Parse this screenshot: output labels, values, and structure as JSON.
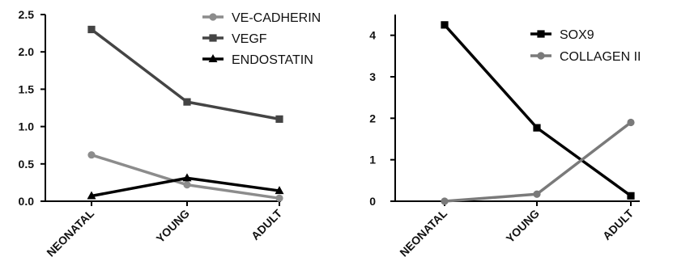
{
  "chart_data": [
    {
      "type": "line",
      "categories": [
        "NEONATAL",
        "YOUNG",
        "ADULT"
      ],
      "ylim": [
        0,
        2.5
      ],
      "yticks": [
        "0.0",
        "0.5",
        "1.0",
        "1.5",
        "2.0",
        "2.5"
      ],
      "legend_position": "top-right",
      "series": [
        {
          "name": "VE-CADHERIN",
          "values": [
            0.62,
            0.22,
            0.04
          ],
          "color": "#8c8c8c",
          "marker": "circle"
        },
        {
          "name": "VEGF",
          "values": [
            2.3,
            1.33,
            1.1
          ],
          "color": "#444444",
          "marker": "square"
        },
        {
          "name": "ENDOSTATIN",
          "values": [
            0.07,
            0.31,
            0.14
          ],
          "color": "#000000",
          "marker": "triangle"
        }
      ]
    },
    {
      "type": "line",
      "categories": [
        "NEONATAL",
        "YOUNG",
        "ADULT"
      ],
      "ylim": [
        0,
        4.5
      ],
      "yticks": [
        "0",
        "1",
        "2",
        "3",
        "4"
      ],
      "legend_position": "top-right",
      "series": [
        {
          "name": "SOX9",
          "values": [
            4.25,
            1.77,
            0.13
          ],
          "color": "#000000",
          "marker": "square"
        },
        {
          "name": "COLLAGEN II",
          "values": [
            0.0,
            0.17,
            1.9
          ],
          "color": "#7a7a7a",
          "marker": "circle"
        }
      ]
    }
  ]
}
